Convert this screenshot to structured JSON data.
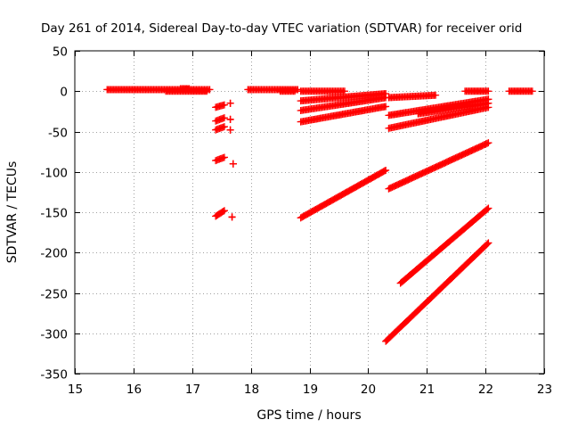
{
  "chart_data": {
    "type": "scatter",
    "title": "Day 261 of 2014, Sidereal Day-to-day VTEC variation (SDTVAR) for receiver orid",
    "xlabel": "GPS time / hours",
    "ylabel": "SDTVAR / TECUs",
    "xlim": [
      15,
      23
    ],
    "ylim": [
      -350,
      50
    ],
    "xticks": [
      15,
      16,
      17,
      18,
      19,
      20,
      21,
      22,
      23
    ],
    "yticks": [
      50,
      0,
      -50,
      -100,
      -150,
      -200,
      -250,
      -300,
      -350
    ],
    "grid": true,
    "legend": "none",
    "marker": "+",
    "color": "#ff0000",
    "series": [
      {
        "name": "seg-01",
        "x": [
          15.55,
          17.3
        ],
        "y": [
          2,
          2
        ]
      },
      {
        "name": "seg-02",
        "x": [
          16.55,
          17.25
        ],
        "y": [
          0,
          0
        ]
      },
      {
        "name": "seg-03",
        "x": [
          16.8,
          16.95
        ],
        "y": [
          3,
          3
        ]
      },
      {
        "name": "seg-04",
        "x": [
          17.95,
          18.8
        ],
        "y": [
          2,
          2
        ]
      },
      {
        "name": "seg-05",
        "x": [
          18.5,
          18.75
        ],
        "y": [
          0,
          0
        ]
      },
      {
        "name": "seg-06",
        "x": [
          17.4,
          17.55
        ],
        "y": [
          -20,
          -17
        ]
      },
      {
        "name": "seg-07",
        "x": [
          17.4,
          17.55
        ],
        "y": [
          -37,
          -33
        ]
      },
      {
        "name": "seg-08",
        "x": [
          17.4,
          17.55
        ],
        "y": [
          -48,
          -44
        ]
      },
      {
        "name": "seg-09",
        "x": [
          17.4,
          17.55
        ],
        "y": [
          -86,
          -82
        ]
      },
      {
        "name": "seg-10",
        "x": [
          17.4,
          17.55
        ],
        "y": [
          -155,
          -148
        ]
      },
      {
        "name": "seg-11",
        "x": [
          17.65,
          17.65
        ],
        "y": [
          -15,
          -15
        ]
      },
      {
        "name": "seg-12",
        "x": [
          17.65,
          17.65
        ],
        "y": [
          -35,
          -35
        ]
      },
      {
        "name": "seg-13",
        "x": [
          17.65,
          17.65
        ],
        "y": [
          -48,
          -48
        ]
      },
      {
        "name": "seg-14",
        "x": [
          17.7,
          17.7
        ],
        "y": [
          -90,
          -90
        ]
      },
      {
        "name": "seg-15",
        "x": [
          17.68,
          17.68
        ],
        "y": [
          -156,
          -156
        ]
      },
      {
        "name": "seg-16",
        "x": [
          18.85,
          19.6
        ],
        "y": [
          0,
          0
        ]
      },
      {
        "name": "seg-17",
        "x": [
          18.85,
          20.3
        ],
        "y": [
          -12,
          -3
        ]
      },
      {
        "name": "seg-18",
        "x": [
          18.85,
          20.3
        ],
        "y": [
          -24,
          -8
        ]
      },
      {
        "name": "seg-19",
        "x": [
          18.85,
          20.3
        ],
        "y": [
          -38,
          -19
        ]
      },
      {
        "name": "seg-20",
        "x": [
          18.85,
          20.3
        ],
        "y": [
          -157,
          -98
        ]
      },
      {
        "name": "seg-21",
        "x": [
          20.35,
          21.15
        ],
        "y": [
          -8,
          -5
        ]
      },
      {
        "name": "seg-22",
        "x": [
          20.35,
          22.05
        ],
        "y": [
          -30,
          -10
        ]
      },
      {
        "name": "seg-23",
        "x": [
          20.35,
          22.05
        ],
        "y": [
          -46,
          -20
        ]
      },
      {
        "name": "seg-24",
        "x": [
          20.85,
          22.05
        ],
        "y": [
          -28,
          -15
        ]
      },
      {
        "name": "seg-25",
        "x": [
          20.35,
          22.05
        ],
        "y": [
          -121,
          -64
        ]
      },
      {
        "name": "seg-26",
        "x": [
          20.55,
          22.05
        ],
        "y": [
          -238,
          -145
        ]
      },
      {
        "name": "seg-27",
        "x": [
          20.3,
          22.05
        ],
        "y": [
          -310,
          -188
        ]
      },
      {
        "name": "seg-28",
        "x": [
          21.65,
          22.05
        ],
        "y": [
          0,
          0
        ]
      },
      {
        "name": "seg-29",
        "x": [
          22.4,
          22.8
        ],
        "y": [
          0,
          0
        ]
      }
    ]
  }
}
